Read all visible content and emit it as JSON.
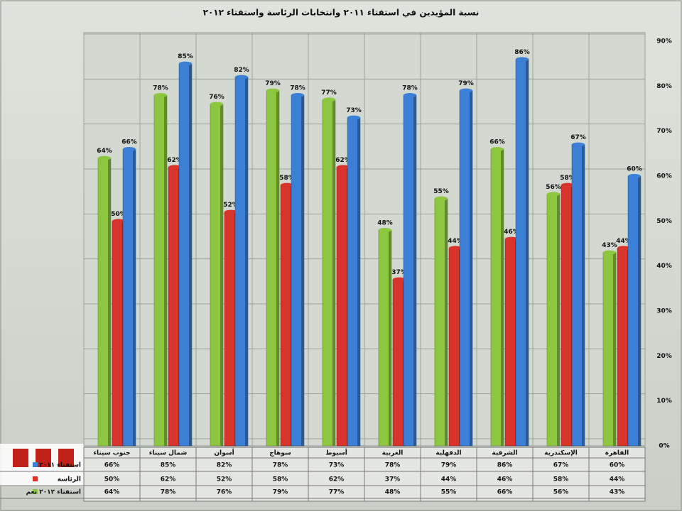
{
  "chart_data": {
    "type": "bar",
    "title": "نسبة المؤيدين في استفتاء ٢٠١١ وانتخابات الرئاسة واستفتاء ٢٠١٢",
    "categories": [
      "جنوب سيناء",
      "شمال سيناء",
      "أسوان",
      "سوهاج",
      "أسيوط",
      "الغربية",
      "الدقهلية",
      "الشرقية",
      "الإسكندرية",
      "القاهرة"
    ],
    "series": [
      {
        "name": "استفتاء ٢٠١٢ نعم",
        "color": "#8dc63f",
        "values": [
          64,
          78,
          76,
          79,
          77,
          48,
          55,
          66,
          56,
          43
        ],
        "value_labels": [
          "64%",
          "78%",
          "76%",
          "79%",
          "77%",
          "48%",
          "55%",
          "66%",
          "56%",
          "43%"
        ]
      },
      {
        "name": "الرئاسة",
        "color": "#d8342b",
        "values": [
          50,
          62,
          52,
          58,
          62,
          37,
          44,
          46,
          58,
          44
        ],
        "value_labels": [
          "50%",
          "62%",
          "52%",
          "58%",
          "62%",
          "37%",
          "44%",
          "46%",
          "58%",
          "44%"
        ]
      },
      {
        "name": "استفتاء ٢٠١١",
        "color": "#3c7fd6",
        "values": [
          66,
          85,
          82,
          78,
          73,
          78,
          79,
          86,
          67,
          60
        ],
        "value_labels": [
          "66%",
          "85%",
          "82%",
          "78%",
          "73%",
          "78%",
          "79%",
          "86%",
          "67%",
          "60%"
        ]
      }
    ],
    "ylim": [
      0,
      90
    ],
    "yticks": [
      {
        "value": 0,
        "label": "0%"
      },
      {
        "value": 10,
        "label": "10%"
      },
      {
        "value": 20,
        "label": "20%"
      },
      {
        "value": 30,
        "label": "30%"
      },
      {
        "value": 40,
        "label": "40%"
      },
      {
        "value": 50,
        "label": "50%"
      },
      {
        "value": 60,
        "label": "60%"
      },
      {
        "value": 70,
        "label": "70%"
      },
      {
        "value": 80,
        "label": "80%"
      },
      {
        "value": 90,
        "label": "90%"
      }
    ],
    "grid": true
  }
}
